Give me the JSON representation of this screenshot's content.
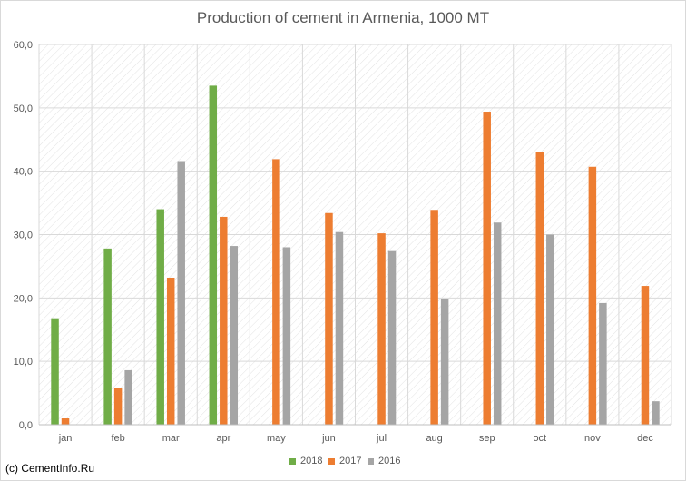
{
  "chart_data": {
    "type": "bar",
    "title": "Production of cement in Armenia, 1000 MT",
    "categories": [
      "jan",
      "feb",
      "mar",
      "apr",
      "may",
      "jun",
      "jul",
      "aug",
      "sep",
      "oct",
      "nov",
      "dec"
    ],
    "series": [
      {
        "name": "2018",
        "color": "#70ad47",
        "values": [
          16.8,
          27.8,
          34.0,
          53.5,
          null,
          null,
          null,
          null,
          null,
          null,
          null,
          null
        ]
      },
      {
        "name": "2017",
        "color": "#ed7d31",
        "values": [
          1.0,
          5.8,
          23.2,
          32.8,
          41.9,
          33.4,
          30.2,
          33.9,
          49.4,
          43.0,
          40.7,
          21.9
        ]
      },
      {
        "name": "2016",
        "color": "#a5a5a5",
        "values": [
          null,
          8.6,
          41.6,
          28.2,
          28.0,
          30.4,
          27.4,
          19.8,
          31.9,
          30.0,
          19.2,
          3.7
        ]
      }
    ],
    "ylim": [
      0,
      60
    ],
    "yticks": [
      "0,0",
      "10,0",
      "20,0",
      "30,0",
      "40,0",
      "50,0",
      "60,0"
    ],
    "xlabel": "",
    "ylabel": "",
    "grid": true,
    "legend": "bottom-center"
  },
  "copyright": "(c) CementInfo.Ru"
}
